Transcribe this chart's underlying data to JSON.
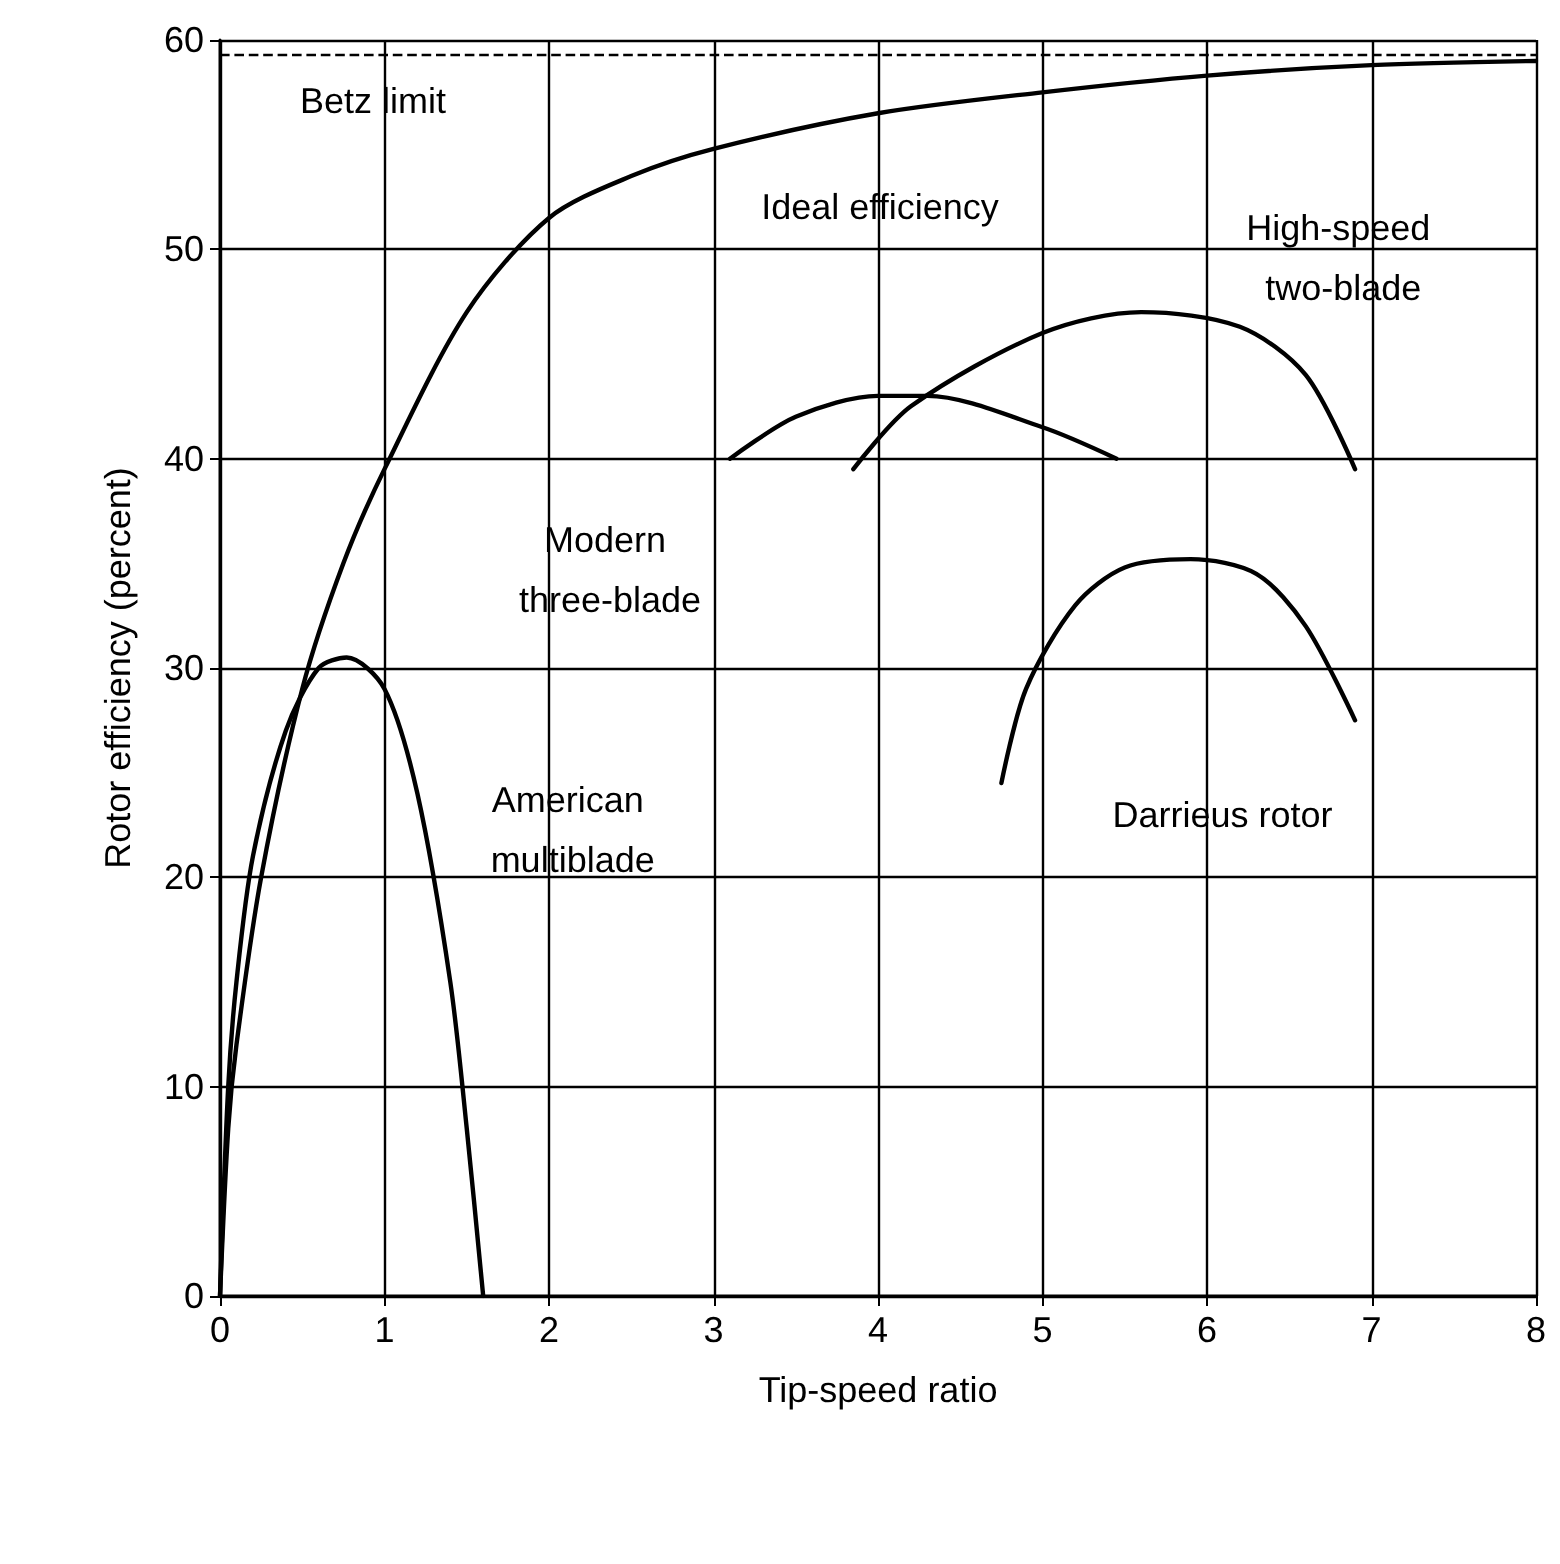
{
  "chart_data": {
    "type": "line",
    "xlabel": "Tip-speed ratio",
    "ylabel": "Rotor efficiency (percent)",
    "xlim": [
      0,
      8
    ],
    "xticks": [
      0,
      1,
      2,
      3,
      4,
      5,
      6,
      7,
      8
    ],
    "ylim": [
      0,
      60
    ],
    "yticks": [
      0,
      10,
      20,
      30,
      40,
      50,
      60
    ],
    "grid": true,
    "marker": "none",
    "line_style": "solid",
    "series": [
      {
        "name": "Ideal efficiency",
        "color": "#000000",
        "x": [
          0,
          0.05,
          0.1,
          0.25,
          0.5,
          0.75,
          1,
          1.5,
          2,
          2.5,
          3,
          4,
          5,
          6,
          7,
          8
        ],
        "values": [
          0,
          8,
          12,
          20,
          29,
          35,
          39.5,
          47,
          51.5,
          53.5,
          54.8,
          56.5,
          57.5,
          58.3,
          58.8,
          59
        ]
      },
      {
        "name": "American multiblade",
        "color": "#000000",
        "x": [
          0,
          0.05,
          0.1,
          0.2,
          0.4,
          0.6,
          0.77,
          1,
          1.2,
          1.4,
          1.5,
          1.6
        ],
        "values": [
          0,
          10,
          15,
          21,
          27,
          30,
          30.5,
          29,
          24,
          15,
          8,
          0
        ]
      },
      {
        "name": "Modern three-blade",
        "color": "#000000",
        "x": [
          3.1,
          3.5,
          4,
          4.3,
          5,
          5.45
        ],
        "values": [
          40,
          42,
          43,
          43,
          41.5,
          40
        ]
      },
      {
        "name": "High-speed two-blade",
        "color": "#000000",
        "x": [
          3.85,
          4.2,
          5,
          5.6,
          6.2,
          6.6,
          6.9
        ],
        "values": [
          39.5,
          42.5,
          46,
          47,
          46.3,
          44,
          39.5
        ]
      },
      {
        "name": "Darrieus rotor",
        "color": "#000000",
        "x": [
          4.75,
          4.9,
          5.2,
          5.5,
          5.9,
          6.3,
          6.6,
          6.9
        ],
        "values": [
          24.5,
          29,
          33,
          34.8,
          35.2,
          34.5,
          32,
          27.5
        ]
      }
    ],
    "ref_lines": [
      {
        "axis": "y",
        "value": 59.3,
        "label": "Betz limit",
        "color": "#000000",
        "line_style": "dashed"
      }
    ]
  }
}
